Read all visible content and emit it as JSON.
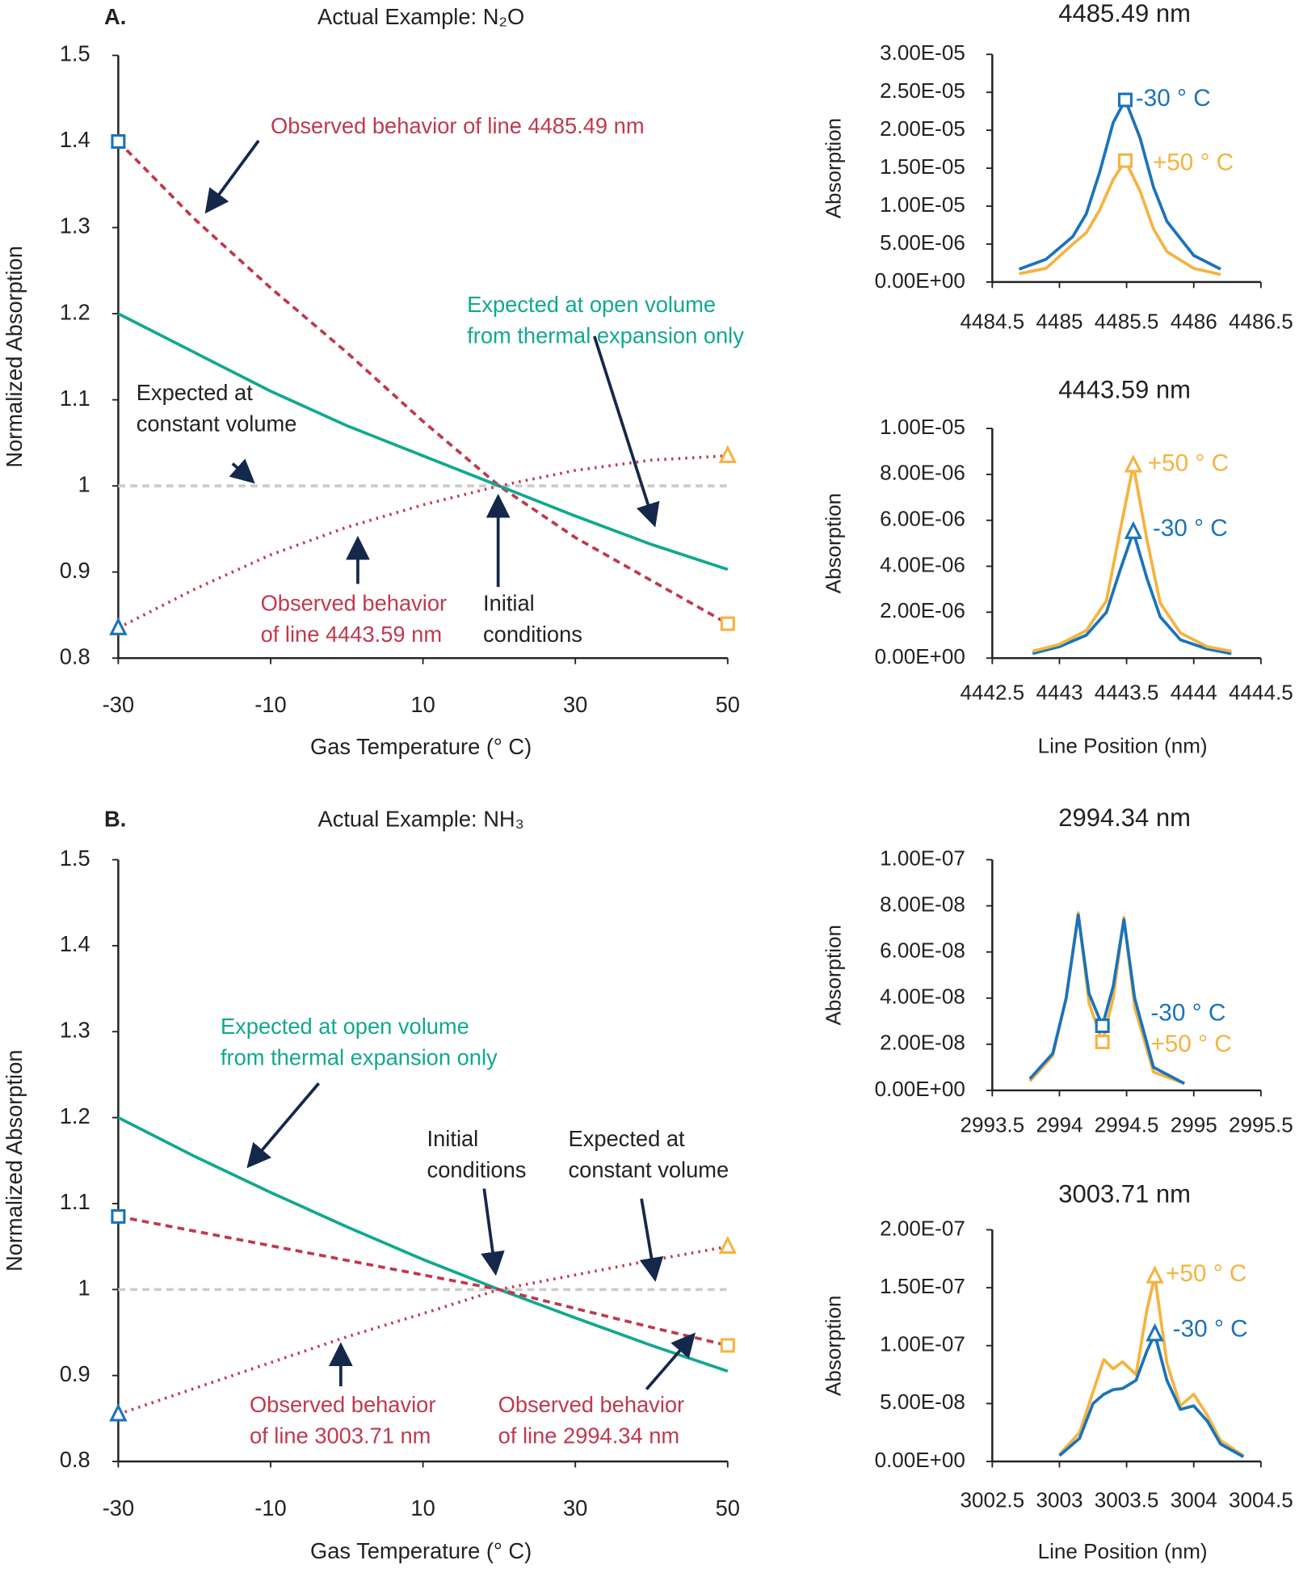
{
  "chart_data": [
    {
      "type": "line",
      "panel": "A.",
      "title": "Actual Example: N₂O",
      "xlabel": "Gas Temperature (° C)",
      "ylabel": "Normalized Absorption",
      "xlim": [
        -30,
        50
      ],
      "xticks": [
        -30,
        -10,
        10,
        30,
        50
      ],
      "ylim": [
        0.8,
        1.5
      ],
      "yticks": [
        0.8,
        0.9,
        1,
        1.1,
        1.2,
        1.3,
        1.4,
        1.5
      ],
      "series": [
        {
          "color": "#c0394e",
          "style": "dashed",
          "x": [
            -30,
            -20,
            -10,
            0,
            10,
            20,
            30,
            40,
            50
          ],
          "values": [
            1.4,
            1.31,
            1.23,
            1.155,
            1.075,
            1.0,
            0.94,
            0.89,
            0.84
          ]
        },
        {
          "color": "#12a88f",
          "style": "solid",
          "x": [
            -30,
            -20,
            -10,
            0,
            10,
            20,
            30,
            40,
            50
          ],
          "values": [
            1.2,
            1.155,
            1.11,
            1.07,
            1.035,
            1.0,
            0.965,
            0.932,
            0.903
          ]
        },
        {
          "color": "#c0394e",
          "style": "dotted",
          "x": [
            -30,
            -20,
            -10,
            0,
            10,
            20,
            30,
            40,
            50
          ],
          "values": [
            0.835,
            0.88,
            0.92,
            0.952,
            0.978,
            1.0,
            1.018,
            1.03,
            1.035
          ]
        },
        {
          "color": "#cccccc",
          "style": "dashed",
          "x": [
            -30,
            50
          ],
          "values": [
            1,
            1
          ]
        }
      ],
      "markers": [
        {
          "x": -30,
          "y": 1.4,
          "shape": "square",
          "color": "#1a73ba"
        },
        {
          "x": 50,
          "y": 0.84,
          "shape": "square",
          "color": "#f4b340"
        },
        {
          "x": -30,
          "y": 0.835,
          "shape": "triangle",
          "color": "#1a73ba"
        },
        {
          "x": 50,
          "y": 1.035,
          "shape": "triangle",
          "color": "#f4b340"
        }
      ],
      "annotations": [
        {
          "text": [
            "Observed behavior of line 4485.49 nm"
          ],
          "color": "#c0394e"
        },
        {
          "text": [
            "Expected at open volume",
            "from thermal expansion only"
          ],
          "color": "#12a88f"
        },
        {
          "text": [
            "Expected at",
            "constant volume"
          ],
          "color": "#222222"
        },
        {
          "text": [
            "Observed behavior",
            "of line 4443.59 nm"
          ],
          "color": "#c0394e"
        },
        {
          "text": [
            "Initial",
            "conditions"
          ],
          "color": "#222222"
        }
      ]
    },
    {
      "type": "line",
      "panel": "B.",
      "title": "Actual Example: NH₃",
      "xlabel": "Gas Temperature (° C)",
      "ylabel": "Normalized Absorption",
      "xlim": [
        -30,
        50
      ],
      "xticks": [
        -30,
        -10,
        10,
        30,
        50
      ],
      "ylim": [
        0.8,
        1.5
      ],
      "yticks": [
        0.8,
        0.9,
        1,
        1.1,
        1.2,
        1.3,
        1.4,
        1.5
      ],
      "series": [
        {
          "color": "#12a88f",
          "style": "solid",
          "x": [
            -30,
            -20,
            -10,
            0,
            10,
            20,
            30,
            40,
            50
          ],
          "values": [
            1.2,
            1.155,
            1.113,
            1.073,
            1.035,
            1.0,
            0.967,
            0.935,
            0.905
          ]
        },
        {
          "color": "#c0394e",
          "style": "dashed",
          "x": [
            -30,
            -20,
            -10,
            0,
            10,
            20,
            30,
            40,
            50
          ],
          "values": [
            1.085,
            1.068,
            1.051,
            1.034,
            1.017,
            1.0,
            0.978,
            0.956,
            0.935
          ]
        },
        {
          "color": "#c0394e",
          "style": "dotted",
          "x": [
            -30,
            -20,
            -10,
            0,
            10,
            20,
            30,
            40,
            50
          ],
          "values": [
            0.855,
            0.885,
            0.915,
            0.945,
            0.972,
            1.0,
            1.017,
            1.034,
            1.05
          ]
        },
        {
          "color": "#cccccc",
          "style": "dashed",
          "x": [
            -30,
            50
          ],
          "values": [
            1,
            1
          ]
        }
      ],
      "markers": [
        {
          "x": -30,
          "y": 1.085,
          "shape": "square",
          "color": "#1a73ba"
        },
        {
          "x": 50,
          "y": 0.935,
          "shape": "square",
          "color": "#f4b340"
        },
        {
          "x": -30,
          "y": 0.855,
          "shape": "triangle",
          "color": "#1a73ba"
        },
        {
          "x": 50,
          "y": 1.05,
          "shape": "triangle",
          "color": "#f4b340"
        }
      ],
      "annotations": [
        {
          "text": [
            "Expected at open volume",
            "from thermal expansion only"
          ],
          "color": "#12a88f"
        },
        {
          "text": [
            "Initial",
            "conditions"
          ],
          "color": "#222222"
        },
        {
          "text": [
            "Expected at",
            "constant volume"
          ],
          "color": "#222222"
        },
        {
          "text": [
            "Observed behavior",
            "of line 3003.71 nm"
          ],
          "color": "#c0394e"
        },
        {
          "text": [
            "Observed behavior",
            "of line 2994.34 nm"
          ],
          "color": "#c0394e"
        }
      ]
    },
    {
      "type": "line",
      "title": "4485.49 nm",
      "ylabel": "Absorption",
      "xlim": [
        4484.5,
        4486.5
      ],
      "xticks": [
        4484.5,
        4485,
        4485.5,
        4486,
        4486.5
      ],
      "ylim": [
        0,
        3e-05
      ],
      "yticks": [
        {
          "value": 0,
          "label": "0.00E+00"
        },
        {
          "value": 5e-06,
          "label": "5.00E-06"
        },
        {
          "value": 1e-05,
          "label": "1.00E-05"
        },
        {
          "value": 1.5e-05,
          "label": "1.50E-05"
        },
        {
          "value": 2e-05,
          "label": "2.00E-05"
        },
        {
          "value": 2.5e-05,
          "label": "2.50E-05"
        },
        {
          "value": 3e-05,
          "label": "3.00E-05"
        }
      ],
      "series": [
        {
          "name": "-30 ° C",
          "color": "#1a73ba",
          "style": "solid",
          "x": [
            4484.7,
            4484.9,
            4485.1,
            4485.2,
            4485.3,
            4485.4,
            4485.49,
            4485.6,
            4485.7,
            4485.8,
            4486.0,
            4486.2
          ],
          "values": [
            1.7e-06,
            3e-06,
            6e-06,
            9e-06,
            1.45e-05,
            2.1e-05,
            2.4e-05,
            1.9e-05,
            1.25e-05,
            8e-06,
            3.5e-06,
            1.7e-06
          ]
        },
        {
          "name": "+50 ° C",
          "color": "#f4b340",
          "style": "solid",
          "x": [
            4484.7,
            4484.9,
            4485.1,
            4485.2,
            4485.3,
            4485.4,
            4485.49,
            4485.6,
            4485.7,
            4485.8,
            4486.0,
            4486.2
          ],
          "values": [
            1.1e-06,
            1.8e-06,
            5e-06,
            6.5e-06,
            9.5e-06,
            1.35e-05,
            1.6e-05,
            1.2e-05,
            7e-06,
            4e-06,
            1.8e-06,
            1e-06
          ]
        }
      ],
      "markers": [
        {
          "x": 4485.49,
          "y": 2.4e-05,
          "shape": "square",
          "color": "#1a73ba"
        },
        {
          "x": 4485.49,
          "y": 1.6e-05,
          "shape": "square",
          "color": "#f4b340"
        }
      ]
    },
    {
      "type": "line",
      "title": "4443.59 nm",
      "xlabel": "Line Position (nm)",
      "ylabel": "Absorption",
      "xlim": [
        4442.5,
        4444.5
      ],
      "xticks": [
        4442.5,
        4443,
        4443.5,
        4444,
        4444.5
      ],
      "ylim": [
        0,
        1e-05
      ],
      "yticks": [
        {
          "value": 0,
          "label": "0.00E+00"
        },
        {
          "value": 2e-06,
          "label": "2.00E-06"
        },
        {
          "value": 4e-06,
          "label": "4.00E-06"
        },
        {
          "value": 6e-06,
          "label": "6.00E-06"
        },
        {
          "value": 8e-06,
          "label": "8.00E-06"
        },
        {
          "value": 1e-05,
          "label": "1.00E-05"
        }
      ],
      "series": [
        {
          "name": "-30 ° C",
          "color": "#1a73ba",
          "style": "solid",
          "x": [
            4442.8,
            4443.0,
            4443.2,
            4443.35,
            4443.45,
            4443.55,
            4443.65,
            4443.75,
            4443.9,
            4444.1,
            4444.28
          ],
          "values": [
            2e-07,
            5e-07,
            1e-06,
            2e-06,
            3.8e-06,
            5.5e-06,
            3.5e-06,
            1.8e-06,
            8e-07,
            4e-07,
            2e-07
          ]
        },
        {
          "name": "+50 ° C",
          "color": "#f4b340",
          "style": "solid",
          "x": [
            4442.8,
            4443.0,
            4443.2,
            4443.35,
            4443.45,
            4443.55,
            4443.65,
            4443.75,
            4443.9,
            4444.1,
            4444.28
          ],
          "values": [
            3e-07,
            6e-07,
            1.2e-06,
            2.5e-06,
            5.5e-06,
            8.4e-06,
            5.2e-06,
            2.4e-06,
            1.1e-06,
            5e-07,
            3e-07
          ]
        }
      ],
      "markers": [
        {
          "x": 4443.55,
          "y": 8.4e-06,
          "shape": "triangle",
          "color": "#f4b340"
        },
        {
          "x": 4443.55,
          "y": 5.5e-06,
          "shape": "triangle",
          "color": "#1a73ba"
        }
      ]
    },
    {
      "type": "line",
      "title": "2994.34 nm",
      "ylabel": "Absorption",
      "xlim": [
        2993.5,
        2995.5
      ],
      "xticks": [
        2993.5,
        2994,
        2994.5,
        2995,
        2995.5
      ],
      "ylim": [
        0,
        1e-07
      ],
      "yticks": [
        {
          "value": 0,
          "label": "0.00E+00"
        },
        {
          "value": 2e-08,
          "label": "2.00E-08"
        },
        {
          "value": 4e-08,
          "label": "4.00E-08"
        },
        {
          "value": 6e-08,
          "label": "6.00E-08"
        },
        {
          "value": 8e-08,
          "label": "8.00E-08"
        },
        {
          "value": 1e-07,
          "label": "1.00E-07"
        }
      ],
      "series": [
        {
          "name": "+50 ° C",
          "color": "#f4b340",
          "style": "solid",
          "x": [
            2993.78,
            2993.95,
            2994.05,
            2994.14,
            2994.22,
            2994.32,
            2994.4,
            2994.48,
            2994.56,
            2994.7,
            2994.93
          ],
          "values": [
            4e-09,
            1.5e-08,
            4e-08,
            7.7e-08,
            3.8e-08,
            2.1e-08,
            4e-08,
            7.5e-08,
            3.6e-08,
            8e-09,
            3e-09
          ]
        },
        {
          "name": "-30 ° C",
          "color": "#1a73ba",
          "style": "solid",
          "x": [
            2993.78,
            2993.95,
            2994.05,
            2994.14,
            2994.22,
            2994.32,
            2994.4,
            2994.48,
            2994.56,
            2994.7,
            2994.93
          ],
          "values": [
            5e-09,
            1.6e-08,
            4e-08,
            7.6e-08,
            4.2e-08,
            2.8e-08,
            4.5e-08,
            7.4e-08,
            4e-08,
            1e-08,
            3e-09
          ]
        }
      ],
      "markers": [
        {
          "x": 2994.32,
          "y": 2.8e-08,
          "shape": "square",
          "color": "#1a73ba"
        },
        {
          "x": 2994.32,
          "y": 2.1e-08,
          "shape": "square",
          "color": "#f4b340"
        }
      ]
    },
    {
      "type": "line",
      "title": "3003.71 nm",
      "xlabel": "Line Position (nm)",
      "ylabel": "Absorption",
      "xlim": [
        3002.5,
        3004.5
      ],
      "xticks": [
        3002.5,
        3003,
        3003.5,
        3004,
        3004.5
      ],
      "ylim": [
        0,
        2e-07
      ],
      "yticks": [
        {
          "value": 0,
          "label": "0.00E+00"
        },
        {
          "value": 5e-08,
          "label": "5.00E-08"
        },
        {
          "value": 1e-07,
          "label": "1.00E-07"
        },
        {
          "value": 1.5e-07,
          "label": "1.50E-07"
        },
        {
          "value": 2e-07,
          "label": "2.00E-07"
        }
      ],
      "series": [
        {
          "name": "+50 ° C",
          "color": "#f4b340",
          "style": "solid",
          "x": [
            3003.0,
            3003.15,
            3003.25,
            3003.33,
            3003.4,
            3003.47,
            3003.57,
            3003.65,
            3003.71,
            3003.8,
            3003.9,
            3004.0,
            3004.1,
            3004.2,
            3004.37
          ],
          "values": [
            6e-09,
            2.5e-08,
            6e-08,
            8.8e-08,
            8e-08,
            8.6e-08,
            7.5e-08,
            1.3e-07,
            1.6e-07,
            8.5e-08,
            4.8e-08,
            5.8e-08,
            4e-08,
            1.8e-08,
            5e-09
          ]
        },
        {
          "name": "-30 ° C",
          "color": "#1a73ba",
          "style": "solid",
          "x": [
            3003.0,
            3003.15,
            3003.25,
            3003.33,
            3003.4,
            3003.47,
            3003.57,
            3003.65,
            3003.71,
            3003.8,
            3003.9,
            3004.0,
            3004.1,
            3004.2,
            3004.37
          ],
          "values": [
            5e-09,
            2e-08,
            5e-08,
            5.8e-08,
            6.2e-08,
            6.3e-08,
            7e-08,
            9.5e-08,
            1.1e-07,
            7e-08,
            4.5e-08,
            4.8e-08,
            3.5e-08,
            1.5e-08,
            4e-09
          ]
        }
      ],
      "markers": [
        {
          "x": 3003.71,
          "y": 1.6e-07,
          "shape": "triangle",
          "color": "#f4b340"
        },
        {
          "x": 3003.71,
          "y": 1.1e-07,
          "shape": "triangle",
          "color": "#1a73ba"
        }
      ]
    }
  ]
}
